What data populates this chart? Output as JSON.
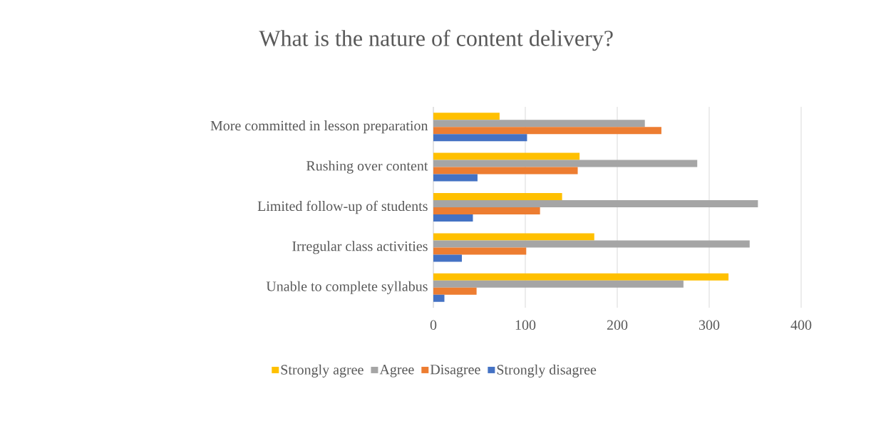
{
  "chart_data": {
    "type": "bar",
    "orientation": "horizontal",
    "title": "What is the nature of content delivery?",
    "categories": [
      "More committed in lesson preparation",
      "Rushing over content",
      "Limited follow-up of students",
      "Irregular class activities",
      "Unable to complete syllabus"
    ],
    "series": [
      {
        "name": "Strongly agree",
        "color": "#ffc000",
        "values": [
          72,
          159,
          140,
          175,
          321
        ]
      },
      {
        "name": "Agree",
        "color": "#a5a5a5",
        "values": [
          230,
          287,
          353,
          344,
          272
        ]
      },
      {
        "name": "Disagree",
        "color": "#ed7d31",
        "values": [
          248,
          157,
          116,
          101,
          47
        ]
      },
      {
        "name": "Strongly disagree",
        "color": "#4472c4",
        "values": [
          102,
          48,
          43,
          31,
          12
        ]
      }
    ],
    "xlim": [
      0,
      400
    ],
    "xticks": [
      0,
      100,
      200,
      300,
      400
    ],
    "grid": "x",
    "legend": "bottom"
  }
}
